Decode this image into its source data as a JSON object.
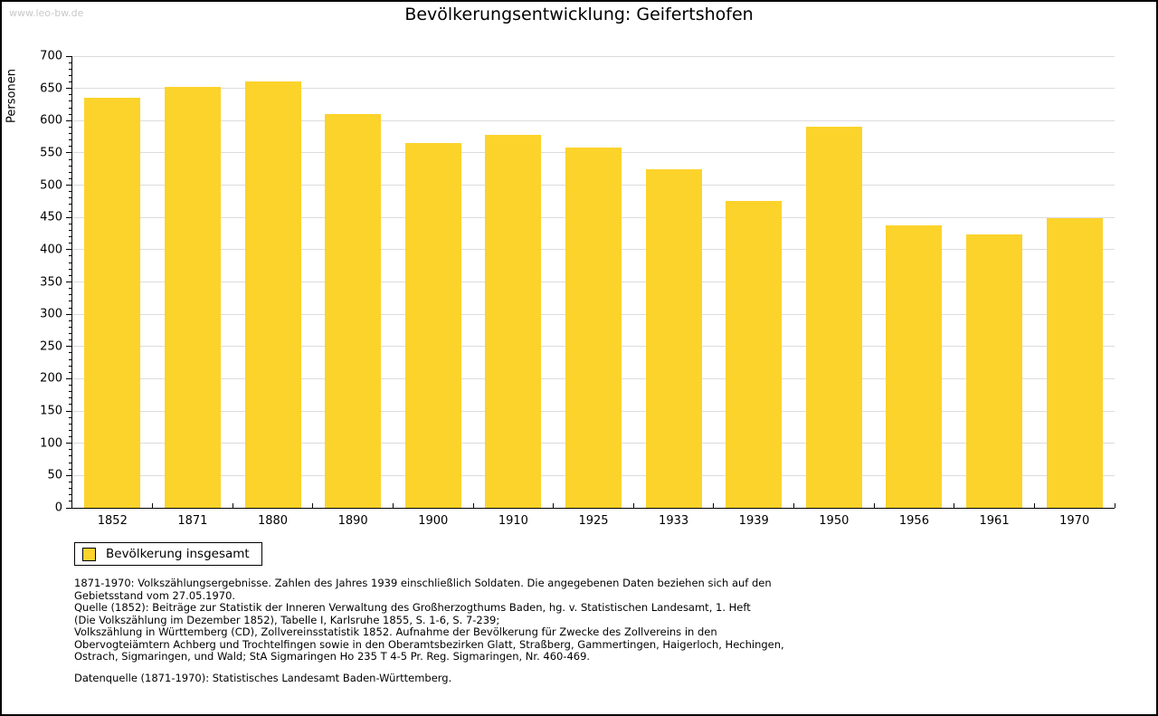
{
  "page": {
    "watermark": "www.leo-bw.de"
  },
  "chart_data": {
    "type": "bar",
    "title": "Bevölkerungsentwicklung: Geifertshofen",
    "ylabel": "Personen",
    "xlabel": "",
    "categories": [
      "1852",
      "1871",
      "1880",
      "1890",
      "1900",
      "1910",
      "1925",
      "1933",
      "1939",
      "1950",
      "1956",
      "1961",
      "1970"
    ],
    "values": [
      636,
      653,
      661,
      610,
      566,
      578,
      558,
      524,
      475,
      591,
      437,
      423,
      449
    ],
    "series": [
      {
        "name": "Bevölkerung insgesamt",
        "values": [
          636,
          653,
          661,
          610,
          566,
          578,
          558,
          524,
          475,
          591,
          437,
          423,
          449
        ]
      }
    ],
    "legend_label": "Bevölkerung insgesamt",
    "legend_position": "bottom-left",
    "ylim": [
      0,
      700
    ],
    "yticks": [
      0,
      50,
      100,
      150,
      200,
      250,
      300,
      350,
      400,
      450,
      500,
      550,
      600,
      650,
      700
    ],
    "minor_tick_step": 10,
    "grid": true,
    "bar_color": "#FCD32B",
    "grid_color": "#DCDCDC",
    "axis_color": "#000000"
  },
  "footer": {
    "lines": [
      "1871-1970: Volkszählungsergebnisse. Zahlen des Jahres 1939 einschließlich Soldaten. Die angegebenen Daten beziehen sich auf den",
      "Gebietsstand vom 27.05.1970.",
      "Quelle (1852): Beiträge zur Statistik der Inneren Verwaltung des Großherzogthums Baden, hg. v. Statistischen Landesamt, 1. Heft",
      "(Die Volkszählung im Dezember 1852), Tabelle I, Karlsruhe 1855, S. 1-6, S. 7-239;",
      "Volkszählung in Württemberg (CD), Zollvereinsstatistik 1852. Aufnahme der Bevölkerung für Zwecke des Zollvereins in den",
      "Obervogteiämtern Achberg und Trochtelfingen sowie in den Oberamtsbezirken Glatt, Straßberg, Gammertingen, Haigerloch, Hechingen,",
      "Ostrach, Sigmaringen, und Wald; StA Sigmaringen Ho 235 T 4-5 Pr. Reg. Sigmaringen, Nr. 460-469."
    ],
    "datenquelle": "Datenquelle (1871-1970): Statistisches Landesamt Baden-Württemberg."
  }
}
